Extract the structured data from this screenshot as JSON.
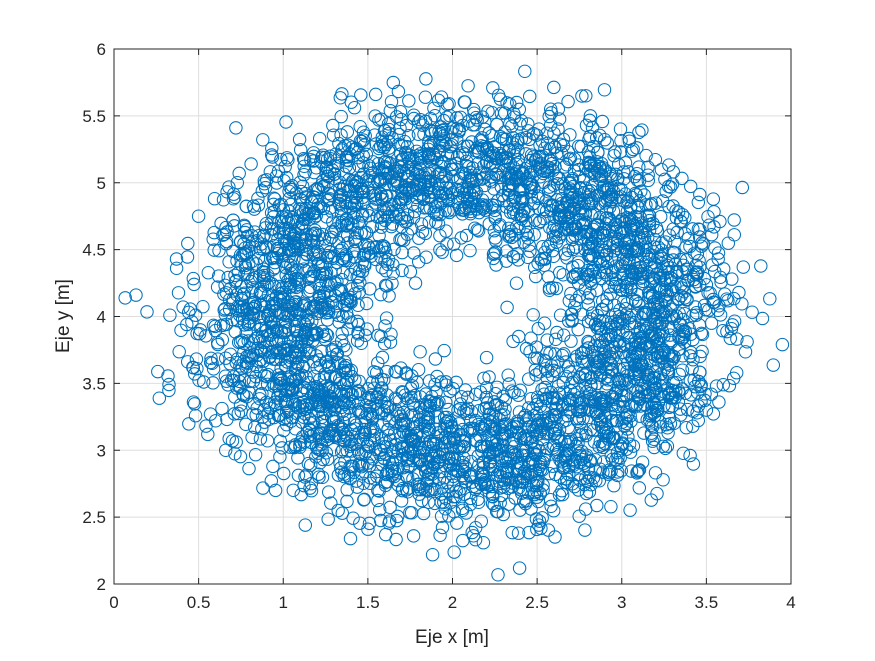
{
  "chart_data": {
    "type": "scatter",
    "title": "",
    "xlabel": "Eje x [m]",
    "ylabel": "Eje y [m]",
    "xlim": [
      0,
      4
    ],
    "ylim": [
      2,
      6
    ],
    "xticks": [
      0,
      0.5,
      1,
      1.5,
      2,
      2.5,
      3,
      3.5,
      4
    ],
    "yticks": [
      2,
      2.5,
      3,
      3.5,
      4,
      4.5,
      5,
      5.5,
      6
    ],
    "xtick_labels": [
      "0",
      "0.5",
      "1",
      "1.5",
      "2",
      "2.5",
      "3",
      "3.5",
      "4"
    ],
    "ytick_labels": [
      "2",
      "2.5",
      "3",
      "3.5",
      "4",
      "4.5",
      "5",
      "5.5",
      "6"
    ],
    "grid": true,
    "marker": "open-circle",
    "series": [
      {
        "color": "#0072bd",
        "distribution": {
          "shape": "ring",
          "center": [
            2.07,
            4.03
          ],
          "inner_radius_mean": 0.95,
          "outer_radius_mean": 1.32,
          "radial_spread": 0.22
        },
        "x": [
          0.13,
          0.33,
          0.37,
          0.43,
          0.46,
          0.47,
          0.49,
          0.5,
          0.51,
          0.53,
          0.57,
          0.6,
          0.66,
          0.7,
          0.72,
          0.74,
          0.81,
          3.42,
          3.5,
          3.53,
          3.56,
          3.57,
          3.58,
          3.6,
          3.62,
          1.84,
          1.98,
          2.58,
          1.13,
          1.77,
          2.39,
          2.51,
          1.5,
          1.12,
          0.96,
          0.98,
          3.3,
          3.27,
          3.44,
          3.38
        ],
        "y": [
          4.16,
          4.01,
          4.36,
          3.94,
          3.96,
          3.36,
          3.61,
          4.75,
          3.9,
          3.51,
          3.27,
          3.22,
          3.0,
          3.07,
          5.41,
          5.07,
          5.14,
          3.18,
          3.3,
          3.95,
          3.48,
          4.43,
          4.71,
          3.49,
          4.13,
          5.64,
          5.59,
          5.55,
          2.44,
          2.36,
          2.38,
          2.44,
          2.41,
          5.18,
          5.05,
          2.95,
          4.99,
          3.03,
          4.26,
          4.52
        ]
      }
    ]
  }
}
